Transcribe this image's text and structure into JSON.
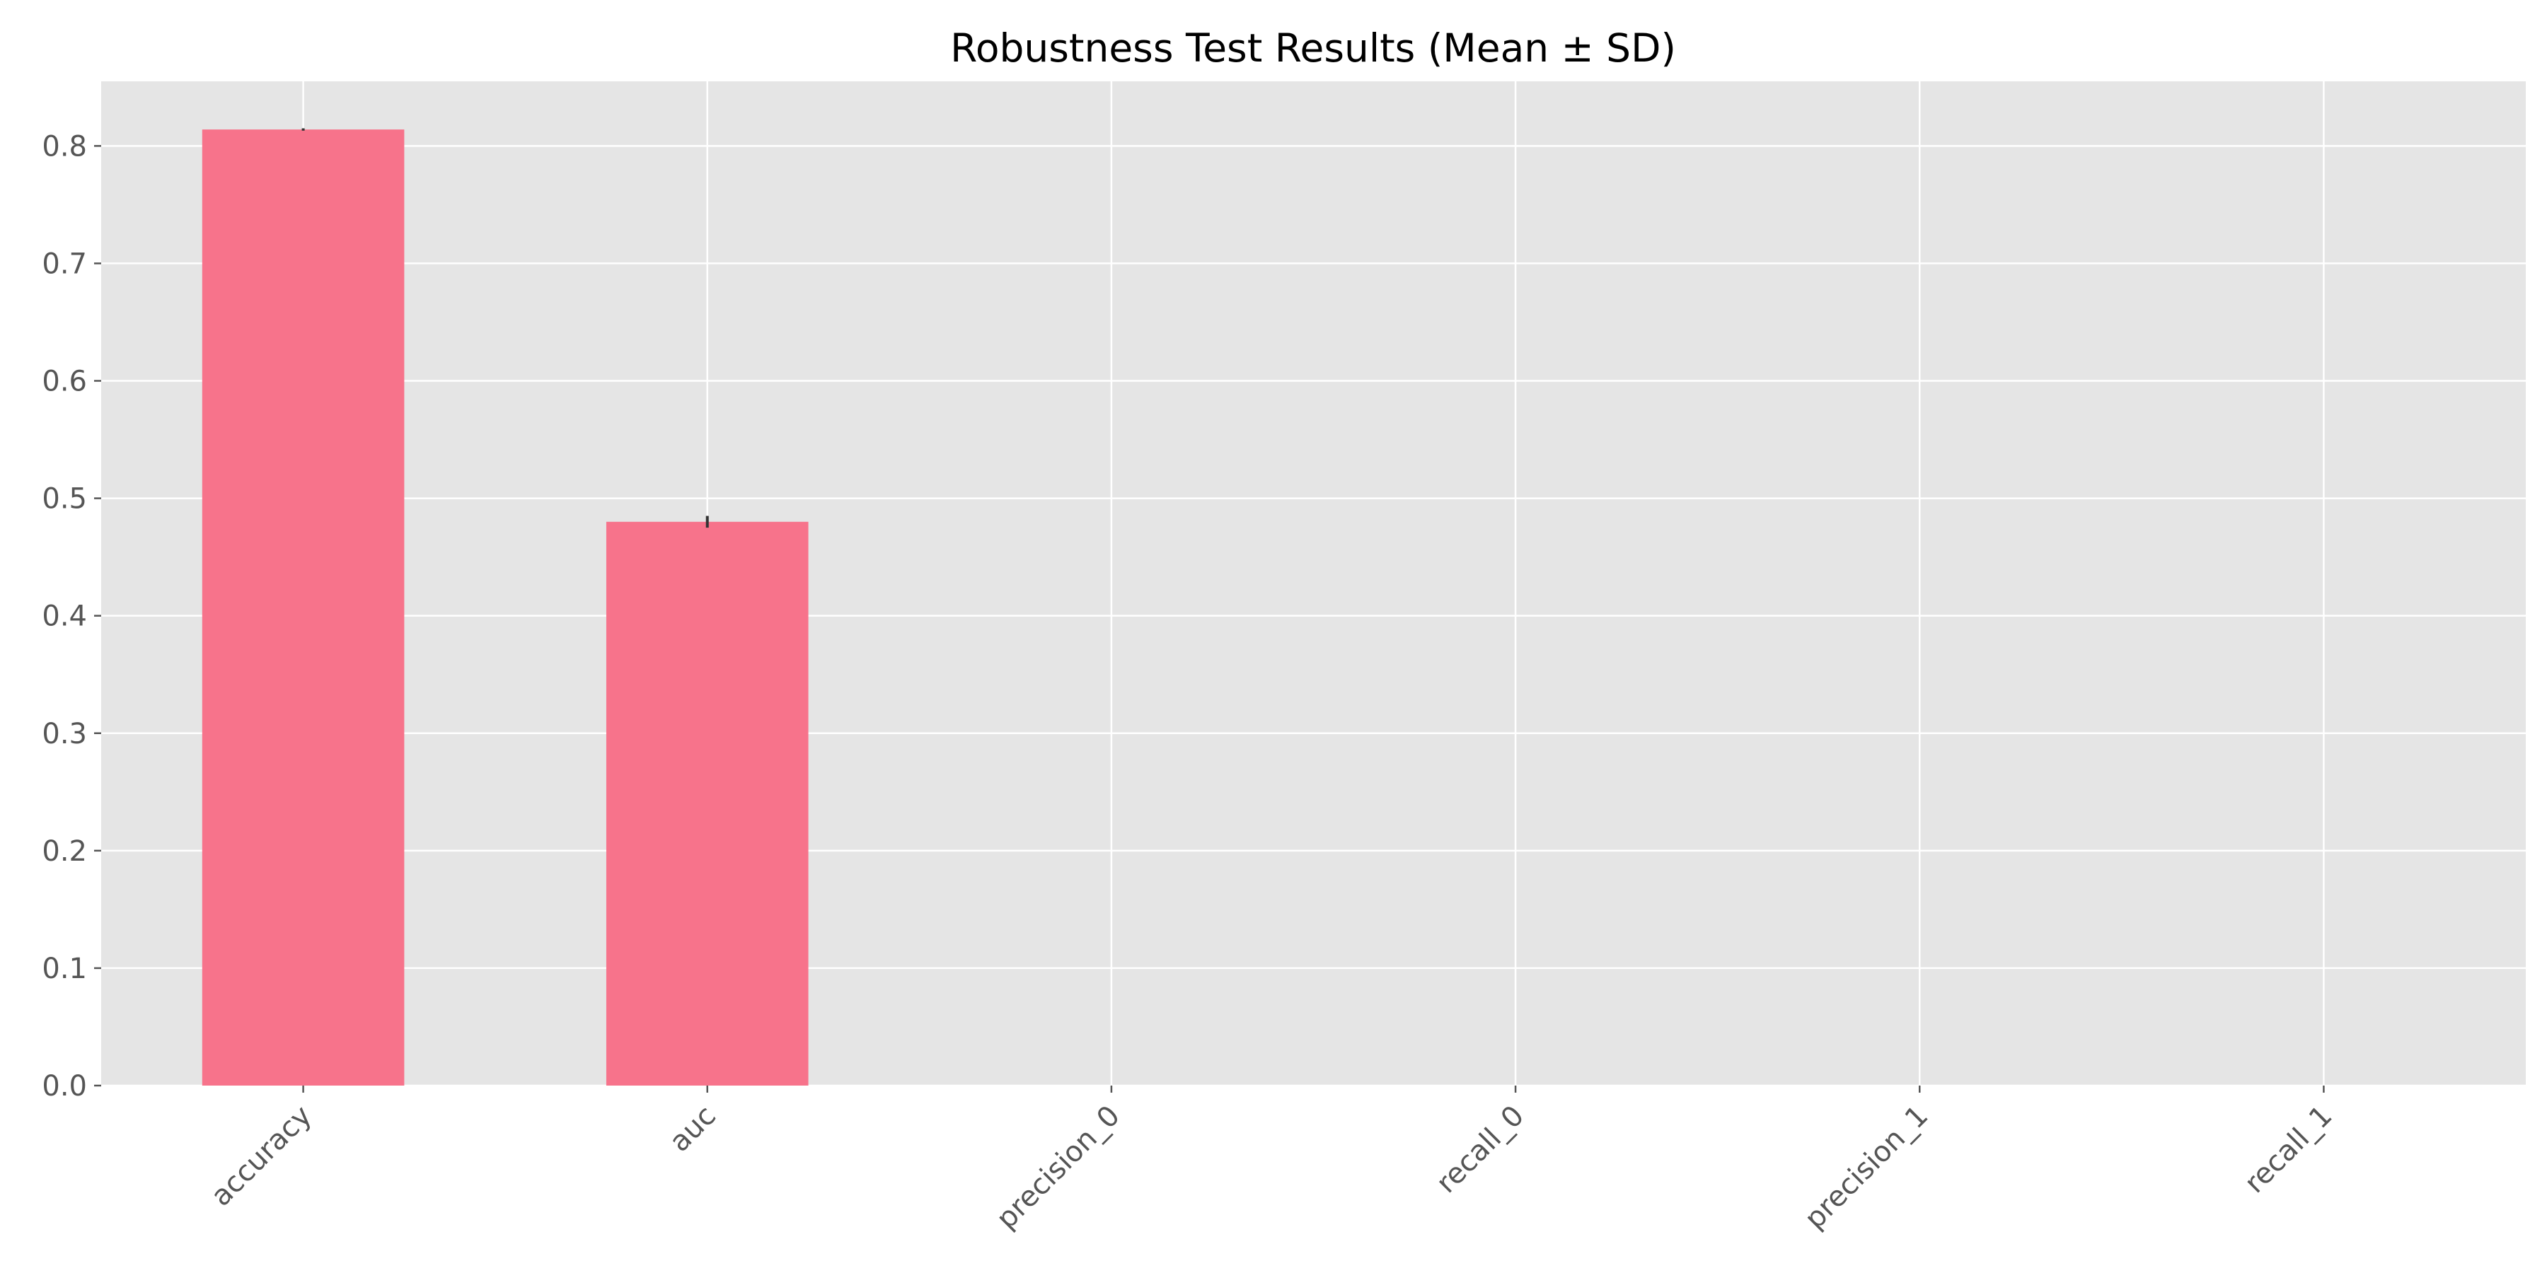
{
  "chart_data": {
    "type": "bar",
    "title": "Robustness Test Results (Mean ± SD)",
    "xlabel": "",
    "ylabel": "",
    "categories": [
      "accuracy",
      "auc",
      "precision_0",
      "recall_0",
      "precision_1",
      "recall_1"
    ],
    "values": [
      0.814,
      0.48,
      0.0,
      0.0,
      0.0,
      0.0
    ],
    "errors": [
      0.001,
      0.005,
      0.0,
      0.0,
      0.0,
      0.0
    ],
    "ylim": [
      0,
      0.855
    ],
    "yticks": [
      0.0,
      0.1,
      0.2,
      0.3,
      0.4,
      0.5,
      0.6,
      0.7,
      0.8
    ],
    "ytick_labels": [
      "0.0",
      "0.1",
      "0.2",
      "0.3",
      "0.4",
      "0.5",
      "0.6",
      "0.7",
      "0.8"
    ],
    "grid": true,
    "legend": "none",
    "colors": {
      "bar": "#f7738b",
      "plot_background": "#e5e5e5",
      "grid": "#ffffff",
      "error_bar": "#333333",
      "tick": "#555555"
    }
  }
}
